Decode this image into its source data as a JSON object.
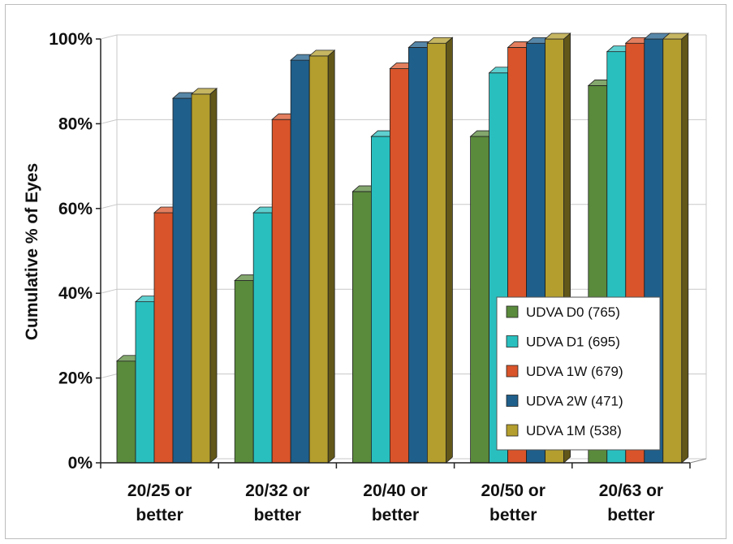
{
  "chart_data": {
    "type": "bar",
    "ylabel": "Cumulative % of Eyes",
    "xlabel": "",
    "ylim": [
      0,
      100
    ],
    "yticks": [
      "0%",
      "20%",
      "40%",
      "60%",
      "80%",
      "100%"
    ],
    "grid": true,
    "legend_position": "bottom-right",
    "categories": [
      [
        "20/25 or",
        "better"
      ],
      [
        "20/32 or",
        "better"
      ],
      [
        "20/40 or",
        "better"
      ],
      [
        "20/50 or",
        "better"
      ],
      [
        "20/63 or",
        "better"
      ]
    ],
    "series": [
      {
        "name": "UDVA D0 (765)",
        "color": "#5a8a3c",
        "values": [
          24,
          43,
          64,
          77,
          89
        ]
      },
      {
        "name": "UDVA D1 (695)",
        "color": "#2abfbf",
        "values": [
          38,
          59,
          77,
          92,
          97
        ]
      },
      {
        "name": "UDVA 1W (679)",
        "color": "#d9542a",
        "values": [
          59,
          81,
          93,
          98,
          99
        ]
      },
      {
        "name": "UDVA 2W (471)",
        "color": "#1f5f8b",
        "values": [
          86,
          95,
          98,
          99,
          100
        ]
      },
      {
        "name": "UDVA 1M (538)",
        "color": "#b39e2e",
        "values": [
          87,
          96,
          99,
          100,
          100
        ]
      }
    ]
  }
}
